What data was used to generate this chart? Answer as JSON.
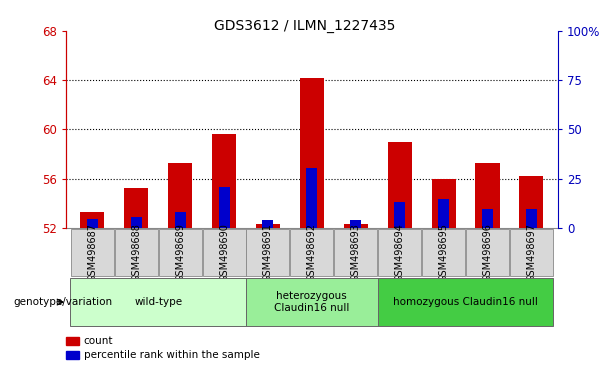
{
  "title": "GDS3612 / ILMN_1227435",
  "samples": [
    "GSM498687",
    "GSM498688",
    "GSM498689",
    "GSM498690",
    "GSM498691",
    "GSM498692",
    "GSM498693",
    "GSM498694",
    "GSM498695",
    "GSM498696",
    "GSM498697"
  ],
  "red_values": [
    53.3,
    55.2,
    57.3,
    59.6,
    52.3,
    64.2,
    52.3,
    59.0,
    56.0,
    57.3,
    56.2
  ],
  "blue_values": [
    52.7,
    52.9,
    53.3,
    55.3,
    52.65,
    56.9,
    52.65,
    54.1,
    54.3,
    53.5,
    53.5
  ],
  "y_min": 52,
  "y_max": 68,
  "y_ticks_left": [
    52,
    56,
    60,
    64,
    68
  ],
  "y_ticks_right": [
    0,
    25,
    50,
    75,
    100
  ],
  "bar_color_red": "#cc0000",
  "bar_color_blue": "#0000cc",
  "bar_width": 0.55,
  "blue_bar_width": 0.25,
  "group_wild": {
    "label": "wild-type",
    "indices": [
      0,
      1,
      2,
      3
    ],
    "color": "#ccffcc"
  },
  "group_het": {
    "label": "heterozygous\nClaudin16 null",
    "indices": [
      4,
      5,
      6
    ],
    "color": "#99ee99"
  },
  "group_hom": {
    "label": "homozygous Claudin16 null",
    "indices": [
      7,
      8,
      9,
      10
    ],
    "color": "#44cc44"
  },
  "legend_items": [
    {
      "label": "count",
      "color": "#cc0000"
    },
    {
      "label": "percentile rank within the sample",
      "color": "#0000cc"
    }
  ],
  "genotype_label": "genotype/variation",
  "background_color": "#ffffff",
  "tick_color_left": "#cc0000",
  "tick_color_right": "#0000bb",
  "grid_color": "#000000",
  "sample_box_color": "#d8d8d8",
  "sample_box_edge": "#888888"
}
